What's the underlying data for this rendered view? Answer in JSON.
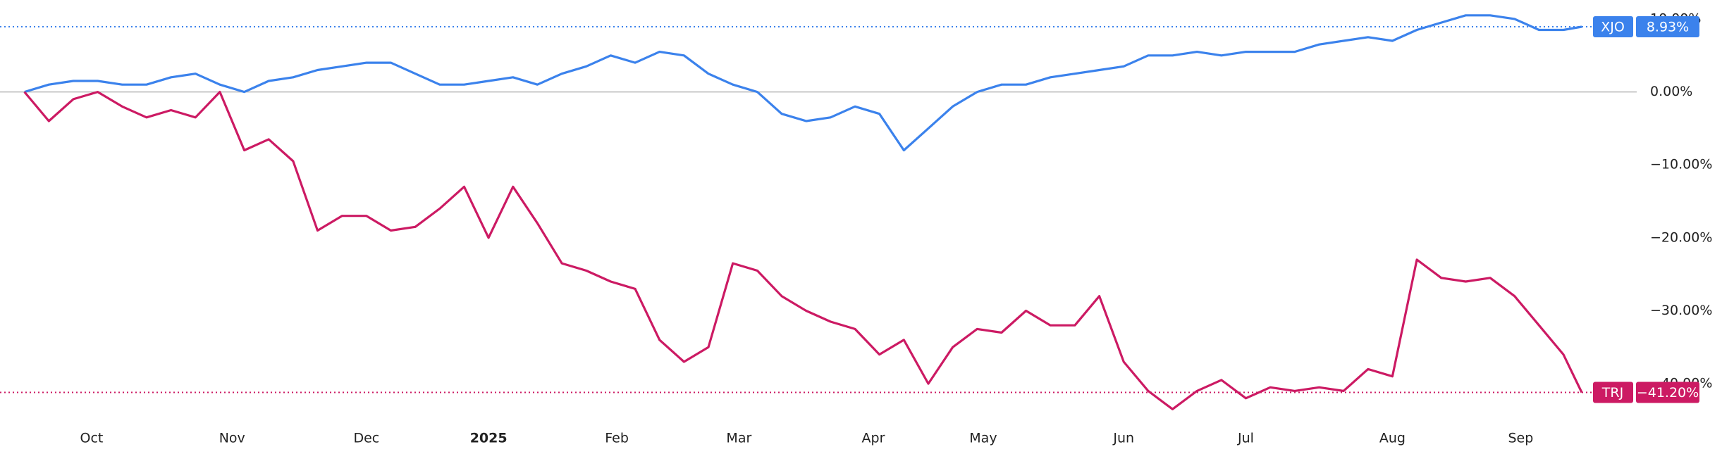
{
  "chart_data": {
    "type": "line",
    "x": [
      0,
      4,
      8,
      12,
      16,
      20,
      24,
      28,
      32,
      36,
      40,
      44,
      48,
      52,
      56,
      60,
      64,
      68,
      72,
      76,
      80,
      84,
      88,
      92,
      96,
      100,
      104,
      108,
      112,
      116,
      120,
      124,
      128,
      132,
      136,
      140,
      144,
      148,
      152,
      156,
      160,
      164,
      168,
      172,
      176,
      180,
      184,
      188,
      192,
      196,
      200,
      204,
      208,
      212,
      216,
      220,
      224,
      228,
      232,
      236,
      240,
      244,
      248,
      252,
      255
    ],
    "xlim": [
      -4,
      264
    ],
    "xticks": [
      {
        "value": 11,
        "label": "Oct"
      },
      {
        "value": 34,
        "label": "Nov"
      },
      {
        "value": 56,
        "label": "Dec"
      },
      {
        "value": 76,
        "label": "2025"
      },
      {
        "value": 97,
        "label": "Feb"
      },
      {
        "value": 117,
        "label": "Mar"
      },
      {
        "value": 139,
        "label": "Apr"
      },
      {
        "value": 157,
        "label": "May"
      },
      {
        "value": 180,
        "label": "Jun"
      },
      {
        "value": 200,
        "label": "Jul"
      },
      {
        "value": 224,
        "label": "Aug"
      },
      {
        "value": 245,
        "label": "Sep"
      }
    ],
    "ylim": [
      -45.3,
      12.6
    ],
    "yticks": [
      {
        "value": 10,
        "label": "10.00%"
      },
      {
        "value": 0,
        "label": "0.00%"
      },
      {
        "value": -10,
        "label": "−10.00%"
      },
      {
        "value": -20,
        "label": "−20.00%"
      },
      {
        "value": -30,
        "label": "−30.00%"
      },
      {
        "value": -40,
        "label": "−40.00%"
      }
    ],
    "series": [
      {
        "name": "XJO",
        "color": "#3b82ec",
        "last_value_label": "8.93%",
        "values": [
          0,
          1,
          1.5,
          1.5,
          1,
          1,
          2,
          2.5,
          1,
          0,
          1.5,
          2,
          3,
          3.5,
          4,
          4,
          2.5,
          1,
          1,
          1.5,
          2,
          1,
          2.5,
          3.5,
          5,
          4,
          5.5,
          5,
          2.5,
          1,
          0,
          -3,
          -4,
          -3.5,
          -2,
          -3,
          -8,
          -5,
          -2,
          0,
          1,
          1,
          2,
          2.5,
          3,
          3.5,
          5,
          5,
          5.5,
          5,
          5.5,
          5.5,
          5.5,
          6.5,
          7,
          7.5,
          7,
          8.5,
          9.5,
          10.5,
          10.5,
          10,
          8.5,
          8.5,
          8.93
        ]
      },
      {
        "name": "TRJ",
        "color": "#cc1a63",
        "last_value_label": "−41.20%",
        "values": [
          0,
          -4,
          -1,
          0,
          -2,
          -3.5,
          -2.5,
          -3.5,
          0,
          -8,
          -6.5,
          -9.5,
          -19,
          -17,
          -17,
          -19,
          -18.5,
          -16,
          -13,
          -20,
          -13,
          -18,
          -23.5,
          -24.5,
          -26,
          -27,
          -34,
          -37,
          -35,
          -23.5,
          -24.5,
          -28,
          -30,
          -31.5,
          -32.5,
          -36,
          -34,
          -40,
          -35,
          -32.5,
          -33,
          -30,
          -32,
          -32,
          -28,
          -37,
          -41,
          -43.5,
          -41,
          -39.5,
          -42,
          -40.5,
          -41,
          -40.5,
          -41,
          -38,
          -39,
          -23,
          -25.5,
          -26,
          -25.5,
          -28,
          -32,
          -36,
          -41.2
        ]
      }
    ]
  }
}
